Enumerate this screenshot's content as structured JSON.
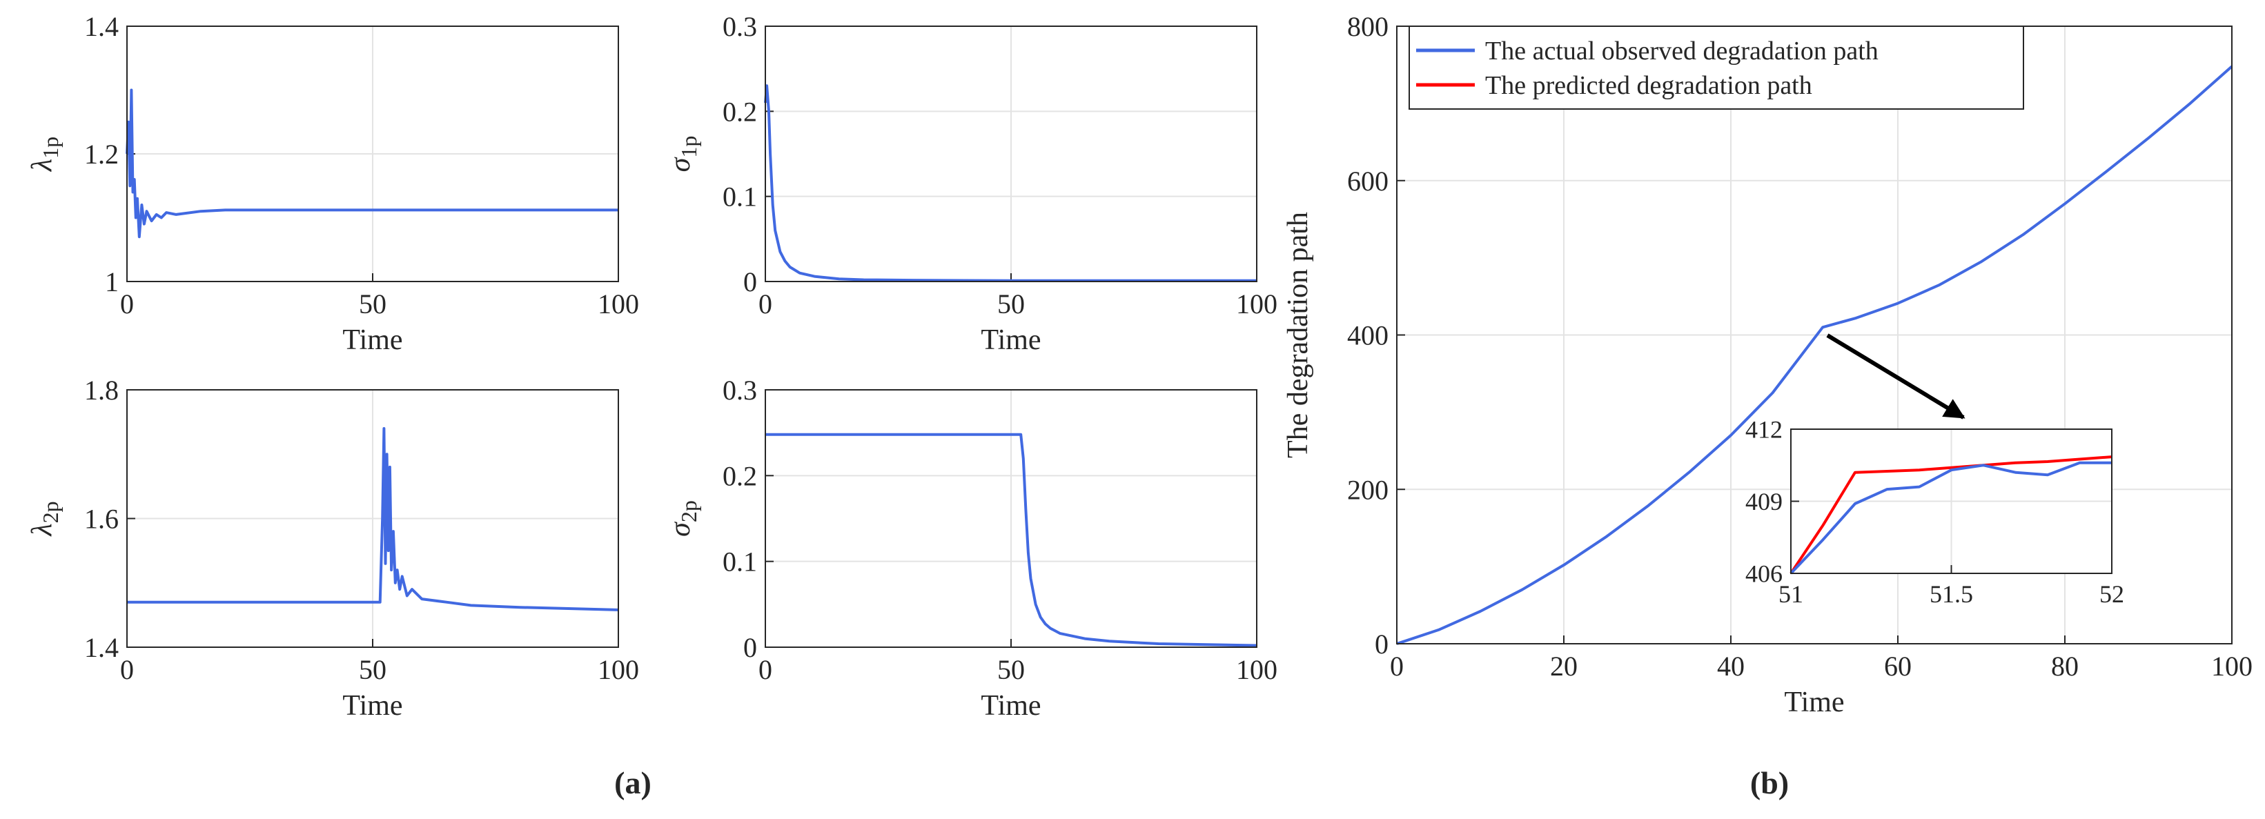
{
  "chart_data": [
    {
      "type": "line",
      "xlabel": "Time",
      "ylabel": "λ",
      "ylabel_sub": "1p",
      "x": [
        0,
        0.3,
        0.6,
        0.9,
        1.2,
        1.5,
        1.8,
        2.1,
        2.5,
        3,
        3.5,
        4,
        5,
        6,
        7,
        8,
        10,
        15,
        20,
        30,
        50,
        100
      ],
      "series": [
        {
          "color": "#4169e1",
          "values": [
            1.2,
            1.25,
            1.15,
            1.3,
            1.14,
            1.16,
            1.1,
            1.13,
            1.07,
            1.12,
            1.09,
            1.11,
            1.095,
            1.105,
            1.1,
            1.108,
            1.105,
            1.11,
            1.112,
            1.112,
            1.112,
            1.112
          ]
        }
      ],
      "xlim": [
        0,
        100
      ],
      "ylim": [
        1,
        1.4
      ],
      "xticks": [
        0,
        50,
        100
      ],
      "yticks": [
        1,
        1.2,
        1.4
      ],
      "grid": true
    },
    {
      "type": "line",
      "xlabel": "Time",
      "ylabel": "σ",
      "ylabel_sub": "1p",
      "x": [
        0,
        0.3,
        0.7,
        1,
        1.5,
        2,
        3,
        4,
        5,
        7,
        10,
        15,
        20,
        30,
        50,
        100
      ],
      "series": [
        {
          "color": "#4169e1",
          "values": [
            0.21,
            0.23,
            0.2,
            0.15,
            0.09,
            0.06,
            0.035,
            0.024,
            0.017,
            0.01,
            0.006,
            0.003,
            0.002,
            0.0015,
            0.001,
            0.001
          ]
        }
      ],
      "xlim": [
        0,
        100
      ],
      "ylim": [
        0,
        0.3
      ],
      "xticks": [
        0,
        50,
        100
      ],
      "yticks": [
        0,
        0.1,
        0.2,
        0.3
      ],
      "grid": true
    },
    {
      "type": "line",
      "xlabel": "Time",
      "ylabel": "λ",
      "ylabel_sub": "2p",
      "x": [
        0,
        51.5,
        52,
        52.3,
        52.6,
        52.9,
        53.2,
        53.5,
        53.8,
        54.2,
        54.6,
        55,
        55.5,
        56,
        57,
        58,
        60,
        65,
        70,
        80,
        100
      ],
      "series": [
        {
          "color": "#4169e1",
          "values": [
            1.47,
            1.47,
            1.6,
            1.74,
            1.53,
            1.7,
            1.55,
            1.68,
            1.52,
            1.58,
            1.5,
            1.52,
            1.49,
            1.51,
            1.48,
            1.49,
            1.475,
            1.47,
            1.465,
            1.462,
            1.458
          ]
        }
      ],
      "xlim": [
        0,
        100
      ],
      "ylim": [
        1.4,
        1.8
      ],
      "xticks": [
        0,
        50,
        100
      ],
      "yticks": [
        1.4,
        1.6,
        1.8
      ],
      "grid": true
    },
    {
      "type": "line",
      "xlabel": "Time",
      "ylabel": "σ",
      "ylabel_sub": "2p",
      "x": [
        0,
        52,
        52.5,
        53,
        53.5,
        54,
        55,
        56,
        57,
        58,
        60,
        65,
        70,
        80,
        90,
        100
      ],
      "series": [
        {
          "color": "#4169e1",
          "values": [
            0.248,
            0.248,
            0.22,
            0.16,
            0.11,
            0.08,
            0.05,
            0.035,
            0.027,
            0.022,
            0.016,
            0.01,
            0.007,
            0.004,
            0.003,
            0.002
          ]
        }
      ],
      "xlim": [
        0,
        100
      ],
      "ylim": [
        0,
        0.3
      ],
      "xticks": [
        0,
        50,
        100
      ],
      "yticks": [
        0,
        0.1,
        0.2,
        0.3
      ],
      "grid": true
    },
    {
      "type": "line",
      "xlabel": "Time",
      "ylabel": "The degradation path",
      "x": [
        0,
        5,
        10,
        15,
        20,
        25,
        30,
        35,
        40,
        45,
        51,
        55,
        60,
        65,
        70,
        75,
        80,
        85,
        90,
        95,
        100
      ],
      "series": [
        {
          "name": "The actual observed degradation path",
          "color": "#4169e1",
          "values": [
            0,
            18,
            42,
            70,
            102,
            138,
            178,
            222,
            270,
            325,
            410,
            422,
            441,
            465,
            495,
            530,
            570,
            612,
            655,
            700,
            748
          ]
        },
        {
          "name": "The predicted degradation path",
          "color": "#ff0000",
          "values": [
            null,
            null,
            null,
            null,
            null,
            null,
            null,
            null,
            null,
            null,
            null,
            null,
            null,
            null,
            null,
            null,
            null,
            null,
            null,
            null,
            null
          ]
        }
      ],
      "xlim": [
        0,
        100
      ],
      "ylim": [
        0,
        800
      ],
      "xticks": [
        0,
        20,
        40,
        60,
        80,
        100
      ],
      "yticks": [
        0,
        200,
        400,
        600,
        800
      ],
      "grid": true,
      "legend": "upper left"
    },
    {
      "type": "line",
      "x": [
        51,
        51.1,
        51.2,
        51.3,
        51.4,
        51.5,
        51.6,
        51.7,
        51.8,
        51.9,
        52
      ],
      "series": [
        {
          "color": "#ff0000",
          "values": [
            406,
            408,
            410.2,
            410.25,
            410.3,
            410.4,
            410.5,
            410.6,
            410.65,
            410.75,
            410.85
          ]
        },
        {
          "color": "#4169e1",
          "values": [
            406,
            407.4,
            408.9,
            409.5,
            409.6,
            410.3,
            410.5,
            410.2,
            410.1,
            410.6,
            410.6
          ]
        }
      ],
      "xlim": [
        51,
        52
      ],
      "ylim": [
        406,
        412
      ],
      "xticks": [
        51,
        51.5,
        52
      ],
      "yticks": [
        406,
        409,
        412
      ],
      "grid": true
    }
  ],
  "captions": [
    "(a)",
    "(b)"
  ]
}
